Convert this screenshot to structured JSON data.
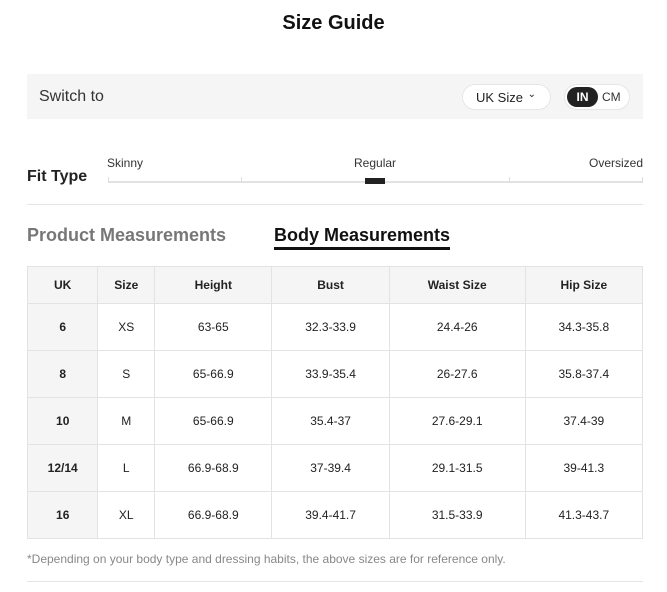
{
  "title": "Size Guide",
  "switch": {
    "label": "Switch to",
    "region": "UK Size",
    "units": [
      "IN",
      "CM"
    ],
    "active_unit": "IN"
  },
  "fit": {
    "label": "Fit Type",
    "options": [
      "Skinny",
      "Regular",
      "Oversized"
    ],
    "selected": "Regular"
  },
  "tabs": [
    {
      "label": "Product Measurements",
      "active": false
    },
    {
      "label": "Body Measurements",
      "active": true
    }
  ],
  "table": {
    "headers": [
      "UK",
      "Size",
      "Height",
      "Bust",
      "Waist Size",
      "Hip Size"
    ],
    "rows": [
      [
        "6",
        "XS",
        "63-65",
        "32.3-33.9",
        "24.4-26",
        "34.3-35.8"
      ],
      [
        "8",
        "S",
        "65-66.9",
        "33.9-35.4",
        "26-27.6",
        "35.8-37.4"
      ],
      [
        "10",
        "M",
        "65-66.9",
        "35.4-37",
        "27.6-29.1",
        "37.4-39"
      ],
      [
        "12/14",
        "L",
        "66.9-68.9",
        "37-39.4",
        "29.1-31.5",
        "39-41.3"
      ],
      [
        "16",
        "XL",
        "66.9-68.9",
        "39.4-41.7",
        "31.5-33.9",
        "41.3-43.7"
      ]
    ]
  },
  "note": "*Depending on your body type and dressing habits, the above sizes are for reference only."
}
